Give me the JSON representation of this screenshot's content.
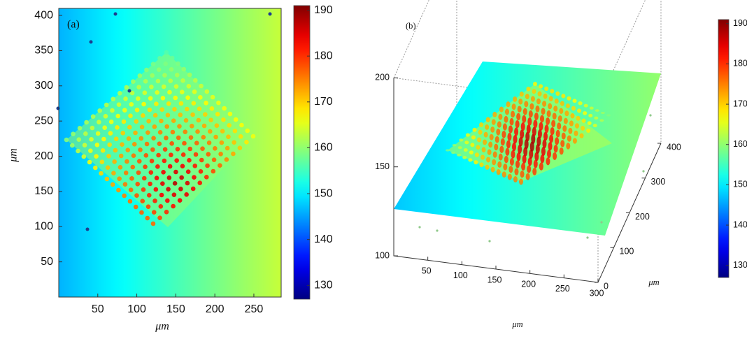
{
  "chart_data": [
    {
      "type": "heatmap",
      "panel_label": "(a)",
      "xlabel": "μm",
      "ylabel": "μm",
      "xlim": [
        0,
        285
      ],
      "xticks": [
        50,
        100,
        150,
        200,
        250
      ],
      "ylim": [
        0,
        410
      ],
      "yticks": [
        50,
        100,
        150,
        200,
        250,
        300,
        350,
        400
      ],
      "colormap": "jet",
      "colorbar": {
        "lim": [
          127,
          191
        ],
        "ticks": [
          130,
          140,
          150,
          160,
          170,
          180,
          190
        ]
      }
    },
    {
      "type": "surface",
      "panel_label": "(b)",
      "xlabel": "μm",
      "ylabel": "μm",
      "xlim": [
        0,
        300
      ],
      "xticks": [
        50,
        100,
        150,
        200,
        250,
        300
      ],
      "ylim": [
        0,
        400
      ],
      "yticks": [
        0,
        100,
        200,
        300,
        400
      ],
      "zlim": [
        100,
        200
      ],
      "zticks": [
        100,
        150,
        200
      ],
      "colormap": "jet",
      "colorbar": {
        "lim": [
          127,
          191
        ],
        "ticks": [
          130,
          140,
          150,
          160,
          170,
          180,
          190
        ]
      }
    }
  ]
}
